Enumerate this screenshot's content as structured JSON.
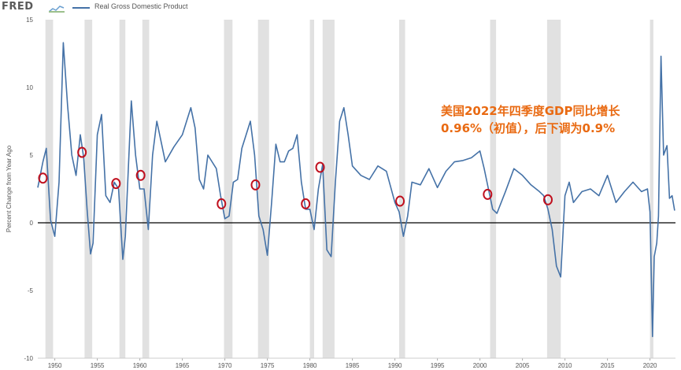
{
  "header": {
    "logo": "FRED",
    "legend_label": "Real Gross Domestic Product",
    "series_color": "#4572a7"
  },
  "annotation": {
    "line1": "美国2022年四季度GDP同比增长",
    "line2": "0.96%（初值），后下调为0.9%",
    "color": "#e96a12"
  },
  "chart_data": {
    "type": "line",
    "title": "",
    "xlabel": "",
    "ylabel": "Percent Change from Year Ago",
    "xlim": [
      1948.0,
      2023.0
    ],
    "ylim": [
      -10,
      15
    ],
    "yticks": [
      15,
      10,
      5,
      0,
      -5,
      -10
    ],
    "xticks": [
      1950,
      1955,
      1960,
      1965,
      1970,
      1975,
      1980,
      1985,
      1990,
      1995,
      2000,
      2005,
      2010,
      2015,
      2020
    ],
    "grid": false,
    "zero_line": true,
    "recession_shading": [
      [
        1948.9,
        1949.8
      ],
      [
        1953.5,
        1954.4
      ],
      [
        1957.6,
        1958.3
      ],
      [
        1960.3,
        1961.1
      ],
      [
        1969.9,
        1970.9
      ],
      [
        1973.9,
        1975.2
      ],
      [
        1980.0,
        1980.5
      ],
      [
        1981.5,
        1982.9
      ],
      [
        1990.5,
        1991.2
      ],
      [
        2001.2,
        2001.9
      ],
      [
        2007.9,
        2009.5
      ],
      [
        2020.0,
        2020.4
      ]
    ],
    "series": [
      {
        "name": "Real Gross Domestic Product",
        "color": "#4572a7",
        "x": [
          1948.0,
          1948.6,
          1949.0,
          1949.5,
          1950.0,
          1950.5,
          1951.0,
          1951.5,
          1952.0,
          1952.5,
          1953.0,
          1953.4,
          1953.8,
          1954.2,
          1954.5,
          1955.0,
          1955.5,
          1956.0,
          1956.5,
          1957.0,
          1957.5,
          1958.0,
          1958.3,
          1959.0,
          1959.5,
          1960.0,
          1960.5,
          1961.0,
          1961.5,
          1962.0,
          1962.5,
          1963.0,
          1964.0,
          1965.0,
          1966.0,
          1966.5,
          1967.0,
          1967.5,
          1968.0,
          1969.0,
          1969.5,
          1970.0,
          1970.5,
          1971.0,
          1971.5,
          1972.0,
          1972.5,
          1973.0,
          1973.5,
          1974.0,
          1974.5,
          1975.0,
          1975.5,
          1976.0,
          1976.5,
          1977.0,
          1977.5,
          1978.0,
          1978.5,
          1979.0,
          1979.5,
          1980.0,
          1980.5,
          1981.0,
          1981.5,
          1982.0,
          1982.5,
          1983.0,
          1983.5,
          1984.0,
          1984.5,
          1985.0,
          1986.0,
          1987.0,
          1988.0,
          1989.0,
          1990.0,
          1990.5,
          1991.0,
          1991.5,
          1992.0,
          1993.0,
          1994.0,
          1995.0,
          1996.0,
          1997.0,
          1998.0,
          1999.0,
          2000.0,
          2000.5,
          2001.0,
          2001.5,
          2002.0,
          2003.0,
          2004.0,
          2005.0,
          2006.0,
          2007.0,
          2007.5,
          2008.0,
          2008.5,
          2009.0,
          2009.5,
          2010.0,
          2010.5,
          2011.0,
          2012.0,
          2013.0,
          2014.0,
          2015.0,
          2016.0,
          2017.0,
          2018.0,
          2019.0,
          2019.7,
          2020.0,
          2020.3,
          2020.5,
          2020.8,
          2021.0,
          2021.3,
          2021.6,
          2022.0,
          2022.3,
          2022.6,
          2022.9
        ],
        "values": [
          2.6,
          4.5,
          5.5,
          0.2,
          -1.0,
          3.0,
          13.3,
          8.7,
          5.0,
          3.5,
          6.5,
          4.8,
          1.0,
          -2.3,
          -1.5,
          6.5,
          8.0,
          2.0,
          1.5,
          3.0,
          2.5,
          -2.7,
          -1.0,
          9.0,
          5.0,
          2.5,
          2.5,
          -0.5,
          5.0,
          7.5,
          6.0,
          4.5,
          5.6,
          6.5,
          8.5,
          7.0,
          3.2,
          2.5,
          5.0,
          4.0,
          2.0,
          0.3,
          0.5,
          3.0,
          3.2,
          5.5,
          6.5,
          7.5,
          5.0,
          0.5,
          -0.5,
          -2.4,
          1.5,
          5.8,
          4.5,
          4.5,
          5.3,
          5.5,
          6.5,
          3.0,
          1.0,
          1.0,
          -0.5,
          2.5,
          4.3,
          -2.0,
          -2.5,
          3.0,
          7.5,
          8.5,
          6.5,
          4.2,
          3.5,
          3.2,
          4.2,
          3.8,
          1.5,
          0.8,
          -1.0,
          0.5,
          3.0,
          2.8,
          4.0,
          2.6,
          3.8,
          4.5,
          4.6,
          4.8,
          5.3,
          4.0,
          2.5,
          1.0,
          0.7,
          2.3,
          4.0,
          3.5,
          2.8,
          2.3,
          2.0,
          1.0,
          -0.5,
          -3.2,
          -4.0,
          2.0,
          3.0,
          1.5,
          2.3,
          2.5,
          2.0,
          3.5,
          1.5,
          2.3,
          3.0,
          2.3,
          2.5,
          0.8,
          -8.4,
          -2.5,
          -1.5,
          0.5,
          12.3,
          5.0,
          5.7,
          1.8,
          2.0,
          0.9
        ]
      }
    ],
    "highlight_markers": {
      "shape": "circle",
      "color": "#c0101e",
      "x": [
        1948.6,
        1953.2,
        1957.2,
        1960.1,
        1969.6,
        1973.6,
        1979.5,
        1981.2,
        1990.6,
        2000.9,
        2008.0
      ],
      "values": [
        3.3,
        5.2,
        2.9,
        3.5,
        1.4,
        2.8,
        1.4,
        4.1,
        1.6,
        2.1,
        1.7
      ]
    }
  }
}
